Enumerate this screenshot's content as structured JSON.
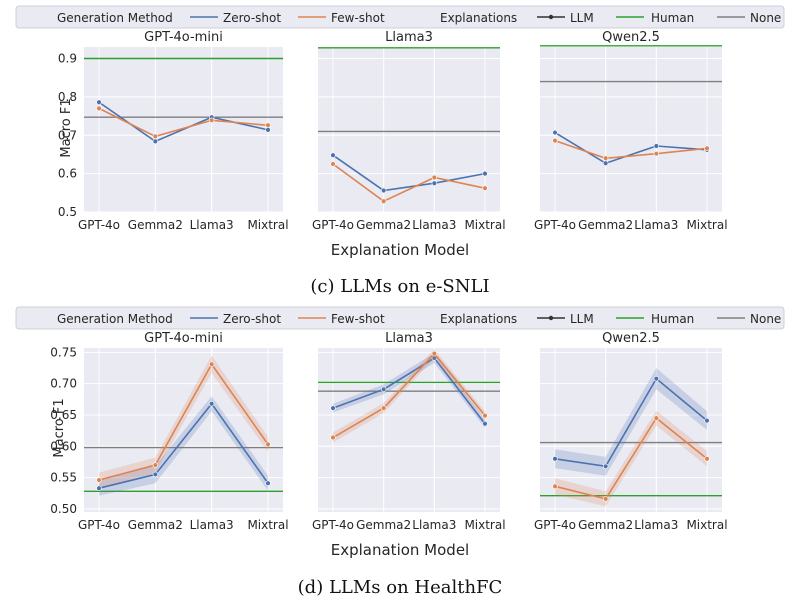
{
  "legend": {
    "generation_method": "Generation Method",
    "zero_shot": "Zero-shot",
    "few_shot": "Few-shot",
    "explanations": "Explanations",
    "llm": "LLM",
    "human": "Human",
    "none": "None"
  },
  "colors": {
    "zero_shot": "#4c72b0",
    "few_shot": "#dd8452",
    "llm": "#333333",
    "human": "#2ca02c",
    "none": "#7f7f7f",
    "panel_bg": "#eaeaf2",
    "grid": "#ffffff"
  },
  "sections": [
    {
      "caption": "(c) LLMs on e-SNLI",
      "xlabel": "Explanation Model",
      "ylabel": "Macro F1",
      "yticks": [
        "0.5",
        "0.6",
        "0.7",
        "0.8",
        "0.9"
      ]
    },
    {
      "caption": "(d) LLMs on HealthFC",
      "xlabel": "Explanation Model",
      "ylabel": "Macro F1",
      "yticks": [
        "0.50",
        "0.55",
        "0.60",
        "0.65",
        "0.70",
        "0.75"
      ]
    }
  ],
  "chart_data": [
    {
      "type": "line",
      "title": "GPT-4o-mini",
      "dataset": "e-SNLI",
      "categories": [
        "GPT-4o",
        "Gemma2",
        "Llama3",
        "Mixtral"
      ],
      "xlabel": "",
      "ylabel": "Macro F1",
      "ylim": [
        0.5,
        0.93
      ],
      "grid": true,
      "series": [
        {
          "name": "Zero-shot",
          "values": [
            0.786,
            0.684,
            0.747,
            0.714
          ]
        },
        {
          "name": "Few-shot",
          "values": [
            0.77,
            0.697,
            0.739,
            0.726
          ]
        }
      ],
      "reference_lines": [
        {
          "name": "Human",
          "value": 0.9
        },
        {
          "name": "None",
          "value": 0.747
        }
      ]
    },
    {
      "type": "line",
      "title": "Llama3",
      "dataset": "e-SNLI",
      "categories": [
        "GPT-4o",
        "Gemma2",
        "Llama3",
        "Mixtral"
      ],
      "xlabel": "Explanation Model",
      "ylabel": "",
      "ylim": [
        0.5,
        0.93
      ],
      "grid": true,
      "series": [
        {
          "name": "Zero-shot",
          "values": [
            0.648,
            0.556,
            0.575,
            0.6
          ]
        },
        {
          "name": "Few-shot",
          "values": [
            0.625,
            0.528,
            0.59,
            0.562
          ]
        }
      ],
      "reference_lines": [
        {
          "name": "Human",
          "value": 0.928
        },
        {
          "name": "None",
          "value": 0.71
        }
      ]
    },
    {
      "type": "line",
      "title": "Qwen2.5",
      "dataset": "e-SNLI",
      "categories": [
        "GPT-4o",
        "Gemma2",
        "Llama3",
        "Mixtral"
      ],
      "xlabel": "",
      "ylabel": "",
      "ylim": [
        0.5,
        0.93
      ],
      "grid": true,
      "series": [
        {
          "name": "Zero-shot",
          "values": [
            0.707,
            0.627,
            0.672,
            0.662
          ]
        },
        {
          "name": "Few-shot",
          "values": [
            0.686,
            0.64,
            0.652,
            0.666
          ]
        }
      ],
      "reference_lines": [
        {
          "name": "Human",
          "value": 0.933
        },
        {
          "name": "None",
          "value": 0.84
        }
      ]
    },
    {
      "type": "line",
      "title": "GPT-4o-mini",
      "dataset": "HealthFC",
      "categories": [
        "GPT-4o",
        "Gemma2",
        "Llama3",
        "Mixtral"
      ],
      "xlabel": "",
      "ylabel": "Macro F1",
      "ylim": [
        0.495,
        0.757
      ],
      "grid": true,
      "series": [
        {
          "name": "Zero-shot",
          "values": [
            0.533,
            0.555,
            0.668,
            0.541
          ],
          "band": [
            0.012,
            0.014,
            0.012,
            0.012
          ]
        },
        {
          "name": "Few-shot",
          "values": [
            0.546,
            0.57,
            0.731,
            0.603
          ],
          "band": [
            0.012,
            0.012,
            0.014,
            0.012
          ]
        }
      ],
      "reference_lines": [
        {
          "name": "Human",
          "value": 0.528
        },
        {
          "name": "None",
          "value": 0.598
        }
      ]
    },
    {
      "type": "line",
      "title": "Llama3",
      "dataset": "HealthFC",
      "categories": [
        "GPT-4o",
        "Gemma2",
        "Llama3",
        "Mixtral"
      ],
      "xlabel": "Explanation Model",
      "ylabel": "",
      "ylim": [
        0.495,
        0.757
      ],
      "grid": true,
      "series": [
        {
          "name": "Zero-shot",
          "values": [
            0.661,
            0.691,
            0.741,
            0.636
          ],
          "band": [
            0.007,
            0.008,
            0.008,
            0.007
          ]
        },
        {
          "name": "Few-shot",
          "values": [
            0.614,
            0.661,
            0.748,
            0.649
          ],
          "band": [
            0.008,
            0.008,
            0.007,
            0.007
          ]
        }
      ],
      "reference_lines": [
        {
          "name": "Human",
          "value": 0.702
        },
        {
          "name": "None",
          "value": 0.688
        }
      ]
    },
    {
      "type": "line",
      "title": "Qwen2.5",
      "dataset": "HealthFC",
      "categories": [
        "GPT-4o",
        "Gemma2",
        "Llama3",
        "Mixtral"
      ],
      "xlabel": "",
      "ylabel": "",
      "ylim": [
        0.495,
        0.757
      ],
      "grid": true,
      "series": [
        {
          "name": "Zero-shot",
          "values": [
            0.58,
            0.568,
            0.708,
            0.641
          ],
          "band": [
            0.015,
            0.015,
            0.017,
            0.015
          ]
        },
        {
          "name": "Few-shot",
          "values": [
            0.536,
            0.516,
            0.645,
            0.58
          ],
          "band": [
            0.013,
            0.012,
            0.012,
            0.012
          ]
        }
      ],
      "reference_lines": [
        {
          "name": "Human",
          "value": 0.521
        },
        {
          "name": "None",
          "value": 0.606
        }
      ]
    }
  ]
}
